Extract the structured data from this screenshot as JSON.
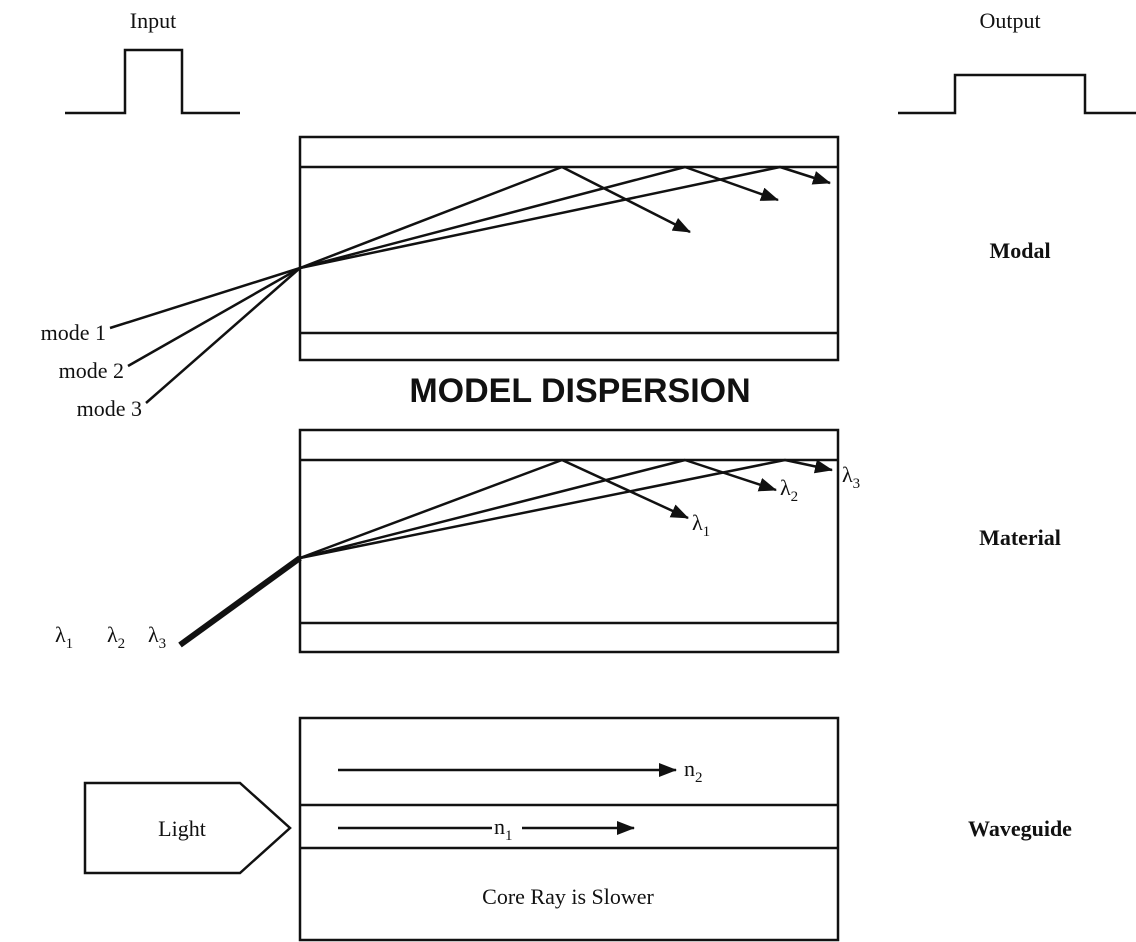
{
  "labels": {
    "input": "Input",
    "output": "Output",
    "modal": "Modal",
    "material": "Material",
    "waveguide": "Waveguide"
  },
  "modes": [
    "mode 1",
    "mode 2",
    "mode 3"
  ],
  "caption": "MODEL DISPERSION",
  "wavelengths": [
    {
      "symbol": "λ",
      "sub": "1"
    },
    {
      "symbol": "λ",
      "sub": "2"
    },
    {
      "symbol": "λ",
      "sub": "3"
    }
  ],
  "indices": [
    {
      "symbol": "n",
      "sub": "2"
    },
    {
      "symbol": "n",
      "sub": "1"
    }
  ],
  "light": "Light",
  "core_note": "Core Ray is Slower"
}
